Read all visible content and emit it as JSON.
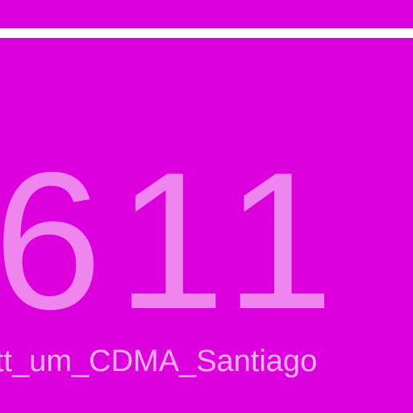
{
  "screen": {
    "number": "611",
    "caption": "tt_um_CDMA_Santiago"
  },
  "colors": {
    "background": "#dc00dc",
    "rule": "#ffffff",
    "number": "#ef86ef",
    "caption": "#f3b1f3"
  }
}
